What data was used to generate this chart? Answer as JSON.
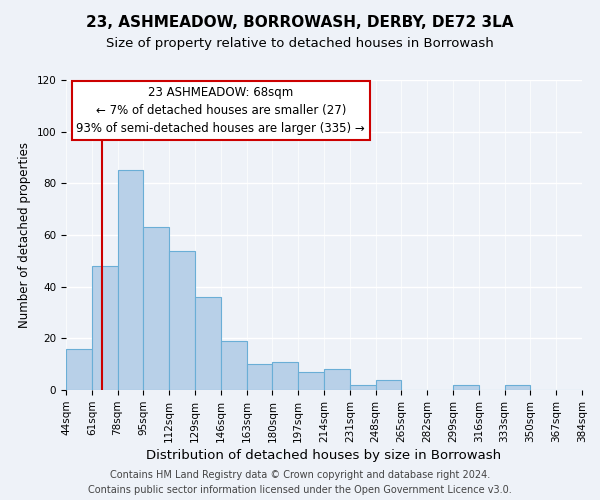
{
  "title": "23, ASHMEADOW, BORROWASH, DERBY, DE72 3LA",
  "subtitle": "Size of property relative to detached houses in Borrowash",
  "xlabel": "Distribution of detached houses by size in Borrowash",
  "ylabel": "Number of detached properties",
  "bin_edges": [
    44,
    61,
    78,
    95,
    112,
    129,
    146,
    163,
    180,
    197,
    214,
    231,
    248,
    265,
    282,
    299,
    316,
    333,
    350,
    367,
    384
  ],
  "bar_heights": [
    16,
    48,
    85,
    63,
    54,
    36,
    19,
    10,
    11,
    7,
    8,
    2,
    4,
    0,
    0,
    2,
    0,
    2,
    0,
    0
  ],
  "bar_color": "#b8d0e8",
  "bar_edge_color": "#6aaed6",
  "vline_x": 68,
  "vline_color": "#cc0000",
  "ylim": [
    0,
    120
  ],
  "yticks": [
    0,
    20,
    40,
    60,
    80,
    100,
    120
  ],
  "annotation_line1": "23 ASHMEADOW: 68sqm",
  "annotation_line2": "← 7% of detached houses are smaller (27)",
  "annotation_line3": "93% of semi-detached houses are larger (335) →",
  "annotation_box_color": "#ffffff",
  "annotation_box_edge": "#cc0000",
  "footer_line1": "Contains HM Land Registry data © Crown copyright and database right 2024.",
  "footer_line2": "Contains public sector information licensed under the Open Government Licence v3.0.",
  "title_fontsize": 11,
  "subtitle_fontsize": 9.5,
  "xlabel_fontsize": 9.5,
  "ylabel_fontsize": 8.5,
  "tick_label_fontsize": 7.5,
  "annotation_fontsize": 8.5,
  "footer_fontsize": 7,
  "background_color": "#eef2f8"
}
